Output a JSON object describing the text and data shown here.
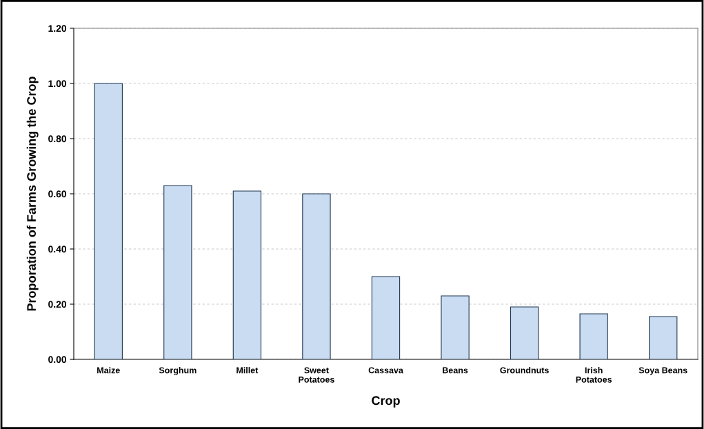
{
  "chart_data": {
    "type": "bar",
    "xlabel": "Crop",
    "ylabel": "Proporation of Farms Growing the Crop",
    "categories": [
      "Maize",
      "Sorghum",
      "Millet",
      "Sweet\nPotatoes",
      "Cassava",
      "Beans",
      "Groundnuts",
      "Irish\nPotatoes",
      "Soya Beans"
    ],
    "values": [
      1.0,
      0.63,
      0.61,
      0.6,
      0.3,
      0.23,
      0.19,
      0.165,
      0.155
    ],
    "color": "#c9dcf2",
    "ylim": [
      0,
      1.2
    ],
    "yticks": [
      {
        "value": 0,
        "label": "0.00"
      },
      {
        "value": 0.2,
        "label": "0.20"
      },
      {
        "value": 0.4,
        "label": "0.40"
      },
      {
        "value": 0.6,
        "label": "0.60"
      },
      {
        "value": 0.8,
        "label": "0.80"
      },
      {
        "value": 1.0,
        "label": "1.00"
      },
      {
        "value": 1.2,
        "label": "1.20"
      }
    ],
    "grid": "y",
    "legend": false
  }
}
